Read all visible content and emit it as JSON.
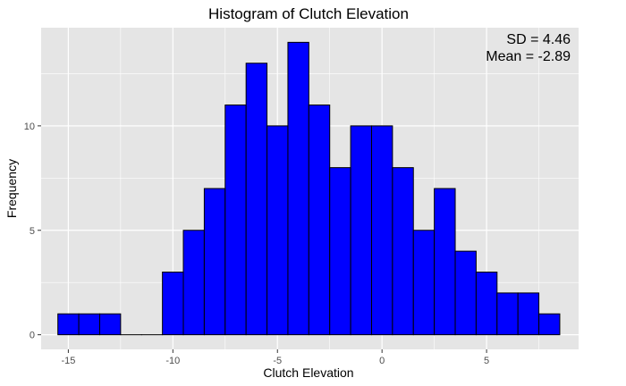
{
  "chart_data": {
    "type": "bar",
    "title": "Histogram of Clutch Elevation",
    "xlabel": "Clutch Elevation",
    "ylabel": "Frequency",
    "xlim": [
      -16.3,
      9.4
    ],
    "ylim": [
      -0.7,
      14.7
    ],
    "x_ticks": [
      -15,
      -10,
      -5,
      0,
      5
    ],
    "y_ticks": [
      0,
      5,
      10
    ],
    "bin_edges": [
      -15.5,
      -14.5,
      -13.5,
      -12.5,
      -11.5,
      -10.5,
      -9.5,
      -8.5,
      -7.5,
      -6.5,
      -5.5,
      -4.5,
      -3.5,
      -2.5,
      -1.5,
      -0.5,
      0.5,
      1.5,
      2.5,
      3.5,
      4.5,
      5.5,
      6.5,
      7.5,
      8.5
    ],
    "values": [
      1,
      1,
      1,
      0,
      0,
      3,
      5,
      7,
      11,
      13,
      10,
      14,
      11,
      8,
      10,
      10,
      8,
      5,
      7,
      4,
      3,
      2,
      2,
      1
    ],
    "bar_fill": "#0000ff",
    "bar_stroke": "#000000",
    "panel_background": "#e5e5e5",
    "grid_color": "#ffffff",
    "grid": true,
    "annotations": [
      "SD = 4.46",
      "Mean = -2.89"
    ]
  }
}
